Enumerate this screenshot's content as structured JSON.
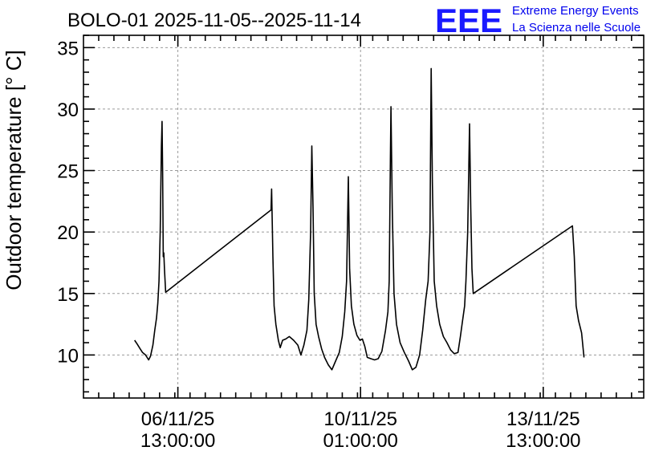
{
  "chart_data": {
    "type": "line",
    "title": "BOLO-01 2025-11-05--2025-11-14",
    "ylabel": "Outdoor temperature [° C]",
    "xlabel": "",
    "ylim": [
      6.5,
      36
    ],
    "xlim": [
      0.0,
      9.2
    ],
    "grid": true,
    "logo": {
      "mark": "EEE",
      "line1": "Extreme Energy Events",
      "line2": "La Scienza nelle Scuole"
    },
    "y_ticks": [
      10,
      15,
      20,
      25,
      30,
      35
    ],
    "x_ticks": [
      {
        "x": 1.55,
        "line1": "06/11/25",
        "line2": "13:00:00"
      },
      {
        "x": 4.55,
        "line1": "10/11/25",
        "line2": "01:00:00"
      },
      {
        "x": 7.55,
        "line1": "13/11/25",
        "line2": "13:00:00"
      }
    ],
    "x_minor_step": 0.25,
    "y_minor_step": 1,
    "series": [
      {
        "values": [
          [
            0.84,
            11.2
          ],
          [
            0.88,
            10.9
          ],
          [
            0.93,
            10.5
          ],
          [
            0.97,
            10.2
          ],
          [
            1.02,
            10.0
          ],
          [
            1.07,
            9.6
          ],
          [
            1.1,
            9.9
          ],
          [
            1.14,
            10.8
          ],
          [
            1.17,
            12.0
          ],
          [
            1.2,
            13.0
          ],
          [
            1.22,
            14.2
          ],
          [
            1.24,
            16.0
          ],
          [
            1.26,
            20.0
          ],
          [
            1.28,
            27.0
          ],
          [
            1.29,
            29.0
          ],
          [
            1.3,
            25.0
          ],
          [
            1.31,
            18.0
          ],
          [
            1.32,
            18.3
          ],
          [
            1.33,
            17.0
          ],
          [
            1.35,
            15.1
          ],
          [
            3.08,
            21.8
          ],
          [
            3.09,
            23.5
          ],
          [
            3.11,
            18.0
          ],
          [
            3.13,
            14.0
          ],
          [
            3.16,
            12.5
          ],
          [
            3.2,
            11.2
          ],
          [
            3.23,
            10.6
          ],
          [
            3.27,
            11.2
          ],
          [
            3.32,
            11.3
          ],
          [
            3.38,
            11.5
          ],
          [
            3.45,
            11.2
          ],
          [
            3.52,
            10.8
          ],
          [
            3.57,
            10.0
          ],
          [
            3.62,
            10.8
          ],
          [
            3.67,
            12.0
          ],
          [
            3.7,
            14.5
          ],
          [
            3.73,
            20.0
          ],
          [
            3.75,
            27.0
          ],
          [
            3.77,
            22.0
          ],
          [
            3.79,
            15.0
          ],
          [
            3.82,
            12.5
          ],
          [
            3.86,
            11.5
          ],
          [
            3.91,
            10.5
          ],
          [
            3.96,
            9.8
          ],
          [
            4.02,
            9.2
          ],
          [
            4.08,
            8.8
          ],
          [
            4.14,
            9.5
          ],
          [
            4.2,
            10.2
          ],
          [
            4.25,
            11.5
          ],
          [
            4.29,
            13.5
          ],
          [
            4.32,
            16.0
          ],
          [
            4.35,
            24.5
          ],
          [
            4.37,
            17.0
          ],
          [
            4.4,
            14.0
          ],
          [
            4.44,
            12.5
          ],
          [
            4.49,
            11.6
          ],
          [
            4.54,
            11.2
          ],
          [
            4.58,
            11.3
          ],
          [
            4.62,
            10.7
          ],
          [
            4.66,
            9.8
          ],
          [
            4.72,
            9.7
          ],
          [
            4.78,
            9.6
          ],
          [
            4.84,
            9.7
          ],
          [
            4.9,
            10.3
          ],
          [
            4.96,
            12.0
          ],
          [
            5.0,
            13.5
          ],
          [
            5.02,
            16.0
          ],
          [
            5.04,
            26.0
          ],
          [
            5.05,
            30.2
          ],
          [
            5.07,
            22.0
          ],
          [
            5.1,
            15.0
          ],
          [
            5.14,
            12.5
          ],
          [
            5.2,
            11.0
          ],
          [
            5.27,
            10.2
          ],
          [
            5.34,
            9.5
          ],
          [
            5.4,
            8.8
          ],
          [
            5.46,
            9.0
          ],
          [
            5.52,
            10.0
          ],
          [
            5.57,
            12.0
          ],
          [
            5.62,
            14.5
          ],
          [
            5.66,
            16.0
          ],
          [
            5.69,
            20.0
          ],
          [
            5.71,
            33.3
          ],
          [
            5.73,
            24.0
          ],
          [
            5.76,
            16.0
          ],
          [
            5.8,
            14.0
          ],
          [
            5.85,
            12.5
          ],
          [
            5.91,
            11.5
          ],
          [
            5.97,
            11.0
          ],
          [
            6.03,
            10.4
          ],
          [
            6.09,
            10.1
          ],
          [
            6.15,
            10.2
          ],
          [
            6.19,
            11.5
          ],
          [
            6.22,
            12.6
          ],
          [
            6.26,
            14.0
          ],
          [
            6.28,
            16.0
          ],
          [
            6.31,
            20.0
          ],
          [
            6.34,
            28.8
          ],
          [
            6.36,
            22.0
          ],
          [
            6.38,
            17.0
          ],
          [
            6.4,
            15.0
          ],
          [
            8.03,
            20.5
          ],
          [
            8.06,
            18.0
          ],
          [
            8.09,
            14.0
          ],
          [
            8.13,
            12.8
          ],
          [
            8.18,
            11.8
          ],
          [
            8.22,
            9.8
          ]
        ]
      }
    ]
  }
}
